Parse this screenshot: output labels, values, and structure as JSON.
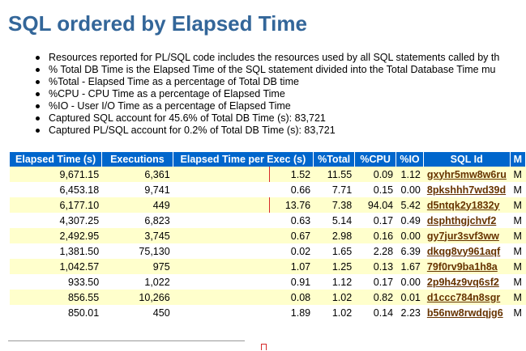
{
  "title": "SQL ordered by Elapsed Time",
  "notes": [
    "Resources reported for PL/SQL code includes the resources used by all SQL statements called by th",
    "% Total DB Time is the Elapsed Time of the SQL statement divided into the Total Database Time mu",
    "%Total - Elapsed Time as a percentage of Total DB time",
    "%CPU - CPU Time as a percentage of Elapsed Time",
    "%IO - User I/O Time as a percentage of Elapsed Time",
    "Captured SQL account for 45.6% of Total DB Time (s): 83,721",
    "Captured PL/SQL account for 0.2% of Total DB Time (s): 83,721"
  ],
  "table": {
    "headers": [
      "Elapsed Time (s)",
      "Executions",
      "Elapsed Time per Exec (s)",
      "%Total",
      "%CPU",
      "%IO",
      "SQL Id",
      "M"
    ],
    "rows": [
      {
        "elapsed": "9,671.15",
        "execs": "6,361",
        "per_exec": "1.52",
        "total": "11.55",
        "cpu": "0.09",
        "io": "1.12",
        "sql_id": "gxyhr5mw8w6ru",
        "m": "M"
      },
      {
        "elapsed": "6,453.18",
        "execs": "9,741",
        "per_exec": "0.66",
        "total": "7.71",
        "cpu": "0.15",
        "io": "0.00",
        "sql_id": "8pkshhh7wd39d",
        "m": "M"
      },
      {
        "elapsed": "6,177.10",
        "execs": "449",
        "per_exec": "13.76",
        "total": "7.38",
        "cpu": "94.04",
        "io": "5.42",
        "sql_id": "d5ntqk2y1832y",
        "m": "M"
      },
      {
        "elapsed": "4,307.25",
        "execs": "6,823",
        "per_exec": "0.63",
        "total": "5.14",
        "cpu": "0.17",
        "io": "0.49",
        "sql_id": "dsphthgjchvf2",
        "m": "M"
      },
      {
        "elapsed": "2,492.95",
        "execs": "3,745",
        "per_exec": "0.67",
        "total": "2.98",
        "cpu": "0.16",
        "io": "0.00",
        "sql_id": "gy7jur3svf3ww",
        "m": "M"
      },
      {
        "elapsed": "1,381.50",
        "execs": "75,130",
        "per_exec": "0.02",
        "total": "1.65",
        "cpu": "2.28",
        "io": "6.39",
        "sql_id": "dkqg8vy961aqf",
        "m": "M"
      },
      {
        "elapsed": "1,042.57",
        "execs": "975",
        "per_exec": "1.07",
        "total": "1.25",
        "cpu": "0.13",
        "io": "1.67",
        "sql_id": "79f0rv9ba1h8a",
        "m": "M"
      },
      {
        "elapsed": "933.50",
        "execs": "1,022",
        "per_exec": "0.91",
        "total": "1.12",
        "cpu": "0.17",
        "io": "0.00",
        "sql_id": "2p9h4z9vq6sf2",
        "m": "M"
      },
      {
        "elapsed": "856.55",
        "execs": "10,266",
        "per_exec": "0.08",
        "total": "1.02",
        "cpu": "0.82",
        "io": "0.01",
        "sql_id": "d1ccc784n8sgr",
        "m": "M"
      },
      {
        "elapsed": "850.01",
        "execs": "450",
        "per_exec": "1.89",
        "total": "1.02",
        "cpu": "0.14",
        "io": "2.23",
        "sql_id": "b56nw8rwdqjg6",
        "m": "M"
      }
    ]
  },
  "highlighted_rows": [
    0,
    2
  ],
  "colors": {
    "title": "#336699",
    "header_bg": "#0066cc",
    "row_odd_bg": "#ffffcc",
    "link": "#663300",
    "highlight_box": "#d62a2a"
  }
}
